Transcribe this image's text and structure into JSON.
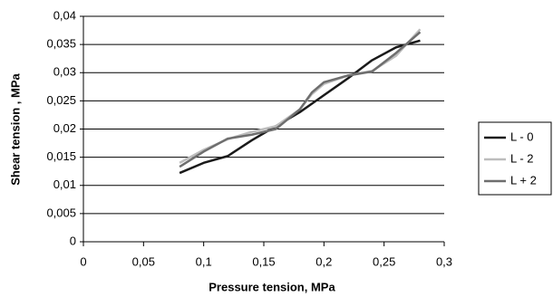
{
  "chart_data": {
    "type": "line",
    "ylabel": "Shear tension , MPa",
    "xlabel": "Pressure tension, MPa",
    "x": [
      0.08,
      0.1,
      0.12,
      0.14,
      0.16,
      0.18,
      0.19,
      0.2,
      0.22,
      0.24,
      0.26,
      0.28
    ],
    "series": [
      {
        "name": "L - 0",
        "color": "#1a1a1a",
        "values": [
          0.0122,
          0.014,
          0.0152,
          0.018,
          0.0205,
          0.023,
          0.0245,
          0.026,
          0.029,
          0.0322,
          0.0345,
          0.0357
        ]
      },
      {
        "name": "L - 2",
        "color": "#bdbdbd",
        "values": [
          0.014,
          0.0163,
          0.0182,
          0.0195,
          0.0205,
          0.0235,
          0.0262,
          0.028,
          0.0295,
          0.0303,
          0.033,
          0.0377
        ]
      },
      {
        "name": "L + 2",
        "color": "#6e6e6e",
        "values": [
          0.0133,
          0.016,
          0.0183,
          0.019,
          0.02,
          0.0235,
          0.0265,
          0.0283,
          0.0295,
          0.0302,
          0.0335,
          0.0372
        ]
      }
    ],
    "xlim": [
      0,
      0.3
    ],
    "xticks": [
      0,
      {
        "value": 0.05,
        "label": "0,05"
      },
      {
        "value": 0.1,
        "label": "0,1"
      },
      {
        "value": 0.15,
        "label": "0,15"
      },
      {
        "value": 0.2,
        "label": "0,2"
      },
      {
        "value": 0.25,
        "label": "0,25"
      },
      {
        "value": 0.3,
        "label": "0,3"
      }
    ],
    "ylim": [
      0,
      0.04
    ],
    "yticks": [
      0,
      {
        "value": 0.005,
        "label": "0,005"
      },
      {
        "value": 0.01,
        "label": "0,01"
      },
      {
        "value": 0.015,
        "label": "0,015"
      },
      {
        "value": 0.02,
        "label": "0,02"
      },
      {
        "value": 0.025,
        "label": "0,025"
      },
      {
        "value": 0.03,
        "label": "0,03"
      },
      {
        "value": 0.035,
        "label": "0,035"
      },
      {
        "value": 0.04,
        "label": "0,04"
      }
    ],
    "grid": true,
    "legend": "right"
  }
}
